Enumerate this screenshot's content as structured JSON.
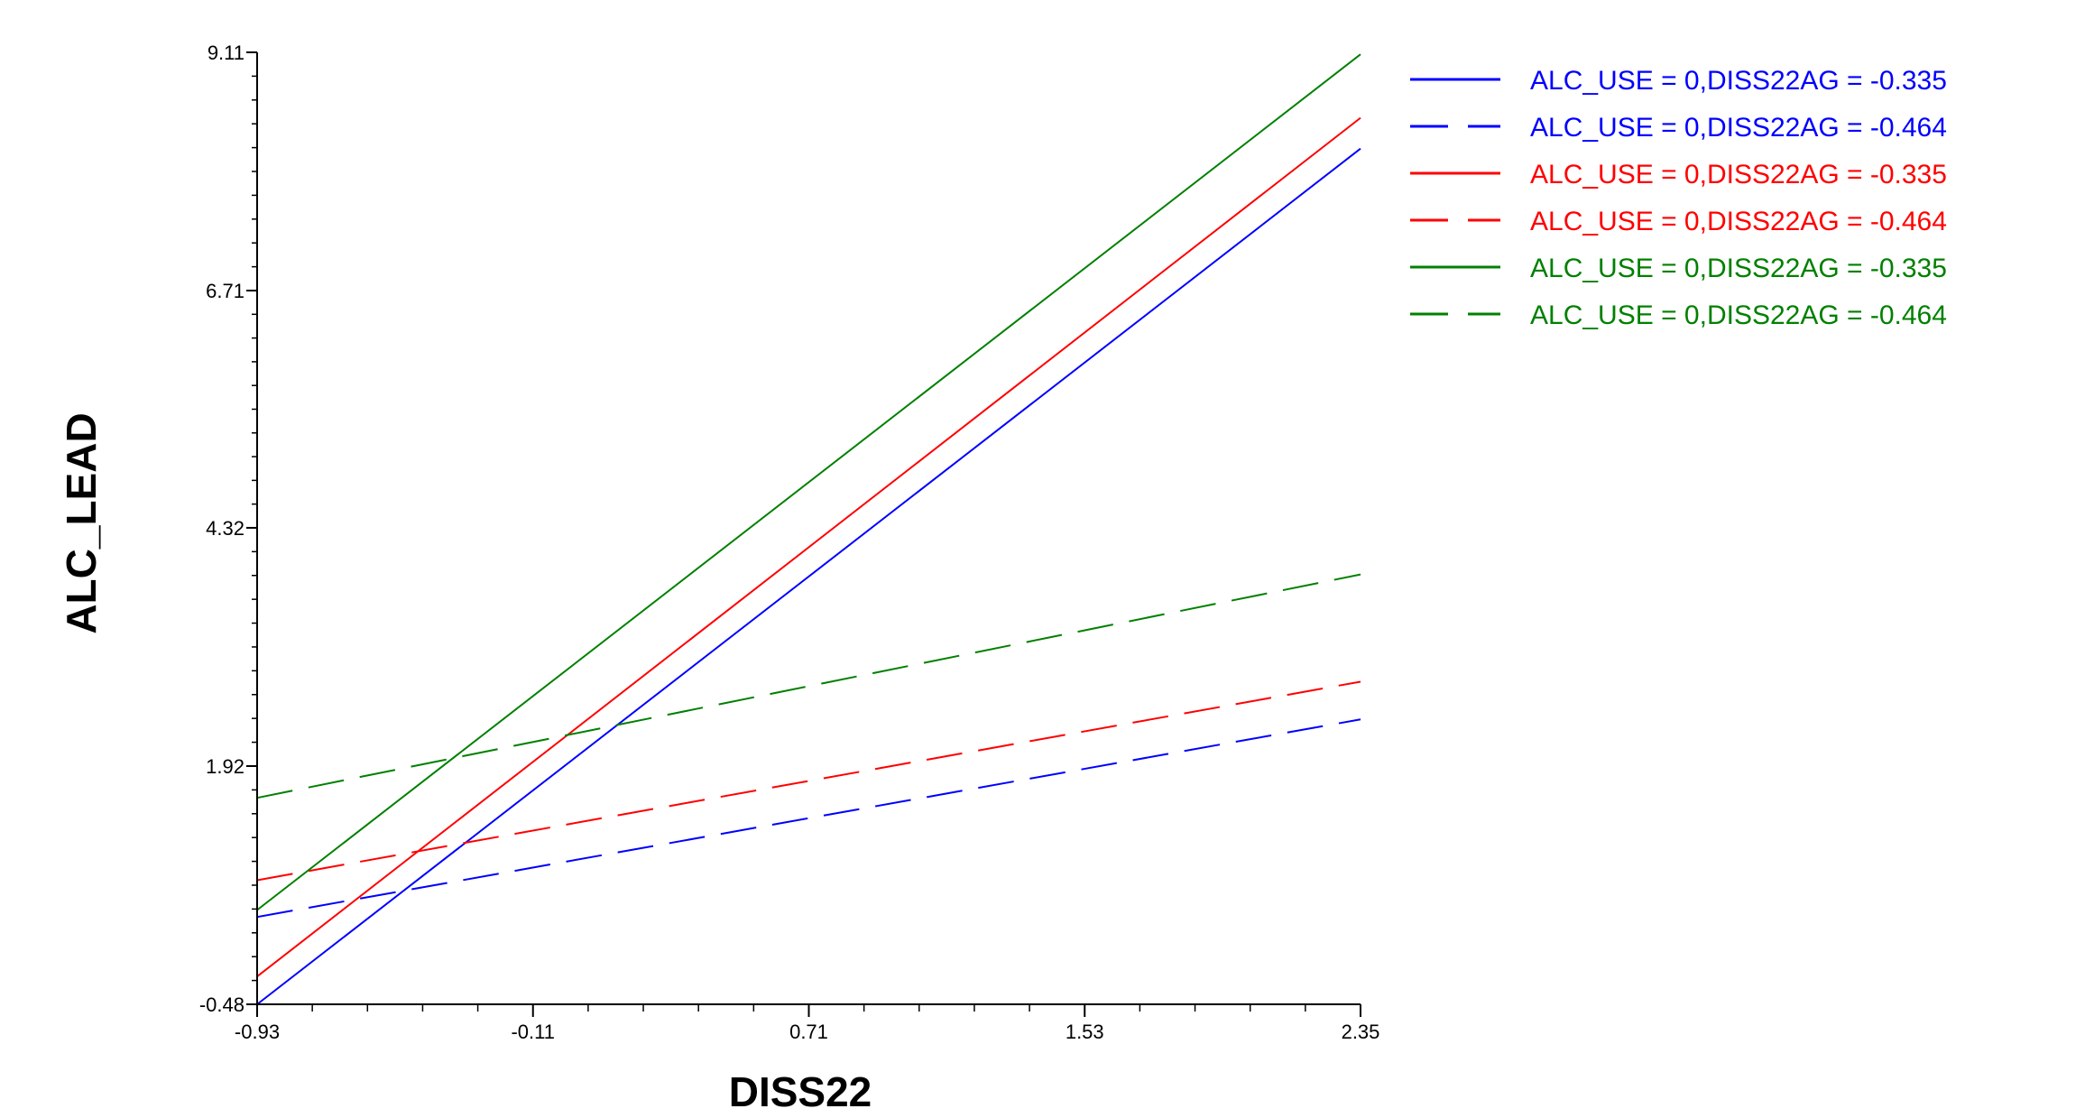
{
  "chart_data": {
    "type": "line",
    "title": "",
    "xlabel": "DISS22",
    "ylabel": "ALC_LEAD",
    "xlim": [
      -0.93,
      2.35
    ],
    "ylim": [
      -0.48,
      9.11
    ],
    "x_ticks": [
      -0.93,
      -0.11,
      0.71,
      1.53,
      2.35
    ],
    "x_tick_labels": [
      "-0.93",
      "-0.11",
      "0.71",
      "1.53",
      "2.35"
    ],
    "y_ticks": [
      -0.48,
      1.92,
      4.32,
      6.71,
      9.11
    ],
    "y_tick_labels": [
      "-0.48",
      "1.92",
      "4.32",
      "6.71",
      "9.11"
    ],
    "grid": false,
    "legend_position": "top-right",
    "x": [
      -0.93,
      2.35
    ],
    "series": [
      {
        "name": "ALC_USE = 0,DISS22AG = -0.335",
        "color": "#0000ff",
        "dash": "solid",
        "values": [
          -0.48,
          8.14
        ]
      },
      {
        "name": "ALC_USE = 0,DISS22AG = -0.464",
        "color": "#0000ff",
        "dash": "dashed",
        "values": [
          0.4,
          2.39
        ]
      },
      {
        "name": "ALC_USE = 0,DISS22AG = -0.335",
        "color": "#ff0000",
        "dash": "solid",
        "values": [
          -0.2,
          8.45
        ]
      },
      {
        "name": "ALC_USE = 0,DISS22AG = -0.464",
        "color": "#ff0000",
        "dash": "dashed",
        "values": [
          0.77,
          2.77
        ]
      },
      {
        "name": "ALC_USE = 0,DISS22AG = -0.335",
        "color": "#008000",
        "dash": "solid",
        "values": [
          0.47,
          9.09
        ]
      },
      {
        "name": "ALC_USE = 0,DISS22AG = -0.464",
        "color": "#008000",
        "dash": "dashed",
        "values": [
          1.6,
          3.85
        ]
      }
    ]
  }
}
